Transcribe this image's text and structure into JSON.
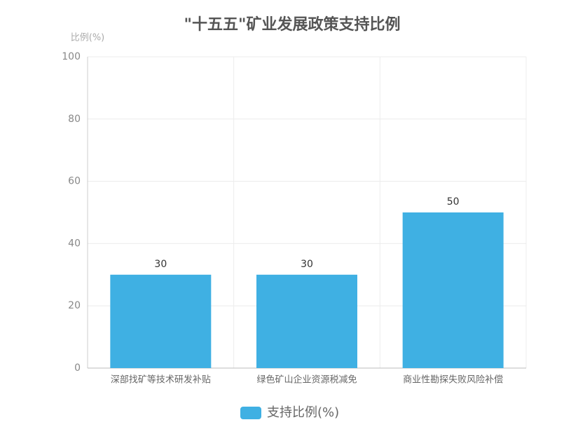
{
  "chart_data": {
    "type": "bar",
    "title": "\"十五五\"矿业发展政策支持比例",
    "y_label": "比例(%)",
    "categories": [
      "深部找矿等技术研发补贴",
      "绿色矿山企业资源税减免",
      "商业性勘探失败风险补偿"
    ],
    "series": [
      {
        "name": "支持比例(%)",
        "color": "#3fb0e3",
        "values": [
          30,
          30,
          50
        ]
      }
    ],
    "ylim": [
      0,
      100
    ],
    "yticks": [
      0,
      20,
      40,
      60,
      80,
      100
    ],
    "grid": true,
    "legend": "bottom"
  }
}
